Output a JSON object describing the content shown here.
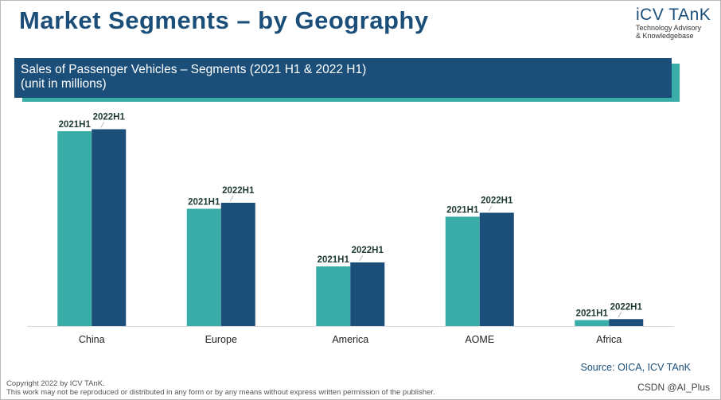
{
  "header": {
    "title": "Market Segments – by Geography"
  },
  "logo": {
    "name": "iCV TAnK",
    "tagline_1": "Technology Advisory",
    "tagline_2": "& Knowledgebase"
  },
  "banner": {
    "title": "Sales of Passenger Vehicles – Segments (2021 H1 & 2022 H1)",
    "subtitle": "(unit in millions)"
  },
  "colors": {
    "series_2021": "#3aada8",
    "series_2022": "#1b4f7a",
    "axis": "#d9d9d9"
  },
  "chart_data": {
    "type": "bar",
    "categories": [
      "China",
      "Europe",
      "America",
      "AOME",
      "Africa"
    ],
    "series": [
      {
        "name": "2021H1",
        "values": [
          9.8,
          5.9,
          3.0,
          5.5,
          0.3
        ]
      },
      {
        "name": "2022H1",
        "values": [
          9.9,
          6.2,
          3.2,
          5.7,
          0.35
        ]
      }
    ],
    "xlabel": "",
    "ylabel": "",
    "ylim": [
      0,
      10
    ],
    "grid": false,
    "legend": "none"
  },
  "footer": {
    "source": "Source: OICA, ICV TAnK",
    "copyright": "Copyright  2022 by ICV TAnK.",
    "notice": "This work may not be reproduced or distributed in any form or by any means without express written permission of the publisher.",
    "watermark": "CSDN @AI_Plus"
  }
}
